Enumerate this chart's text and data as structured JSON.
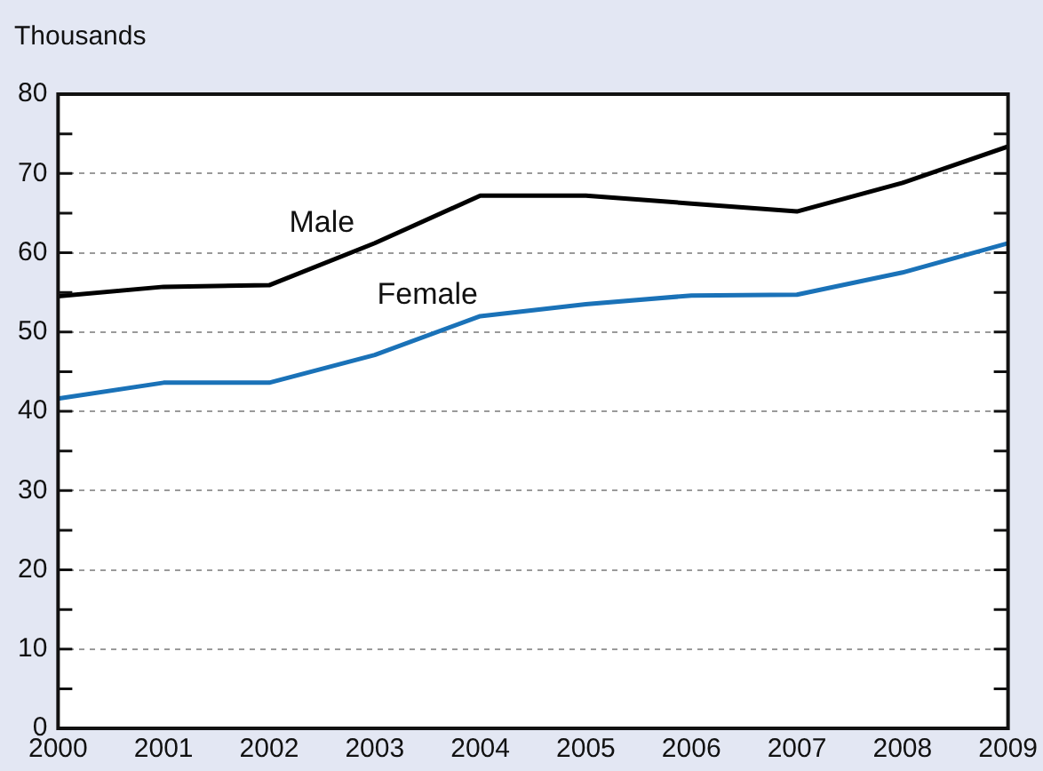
{
  "chart_data": {
    "type": "line",
    "ylabel": "Thousands",
    "x": [
      2000,
      2001,
      2002,
      2003,
      2004,
      2005,
      2006,
      2007,
      2008,
      2009
    ],
    "series": [
      {
        "name": "Male",
        "color": "#000000",
        "values": [
          54.5,
          55.7,
          55.9,
          61.2,
          67.2,
          67.2,
          66.2,
          65.2,
          68.8,
          73.4
        ]
      },
      {
        "name": "Female",
        "color": "#1a72b8",
        "values": [
          41.6,
          43.6,
          43.6,
          47.1,
          52.0,
          53.5,
          54.6,
          54.7,
          57.5,
          61.2
        ]
      }
    ],
    "xlim": [
      2000,
      2009
    ],
    "xticks": [
      2000,
      2001,
      2002,
      2003,
      2004,
      2005,
      2006,
      2007,
      2008,
      2009
    ],
    "ylim": [
      0,
      80
    ],
    "yticks": [
      0,
      {
        "value": 5,
        "label": null
      },
      10,
      {
        "value": 15,
        "label": null
      },
      20,
      {
        "value": 25,
        "label": null
      },
      30,
      {
        "value": 35,
        "label": null
      },
      40,
      {
        "value": 45,
        "label": null
      },
      50,
      {
        "value": 55,
        "label": null
      },
      60,
      {
        "value": 65,
        "label": null
      },
      70,
      {
        "value": 75,
        "label": null
      },
      80
    ],
    "grid": "y",
    "legend": false,
    "marker": "none",
    "line_style": "solid"
  }
}
